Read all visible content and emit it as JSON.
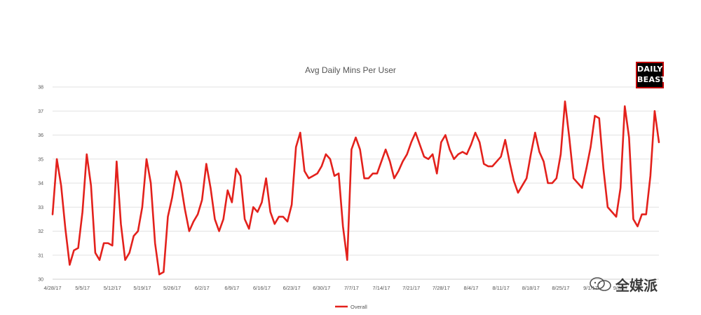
{
  "chart_data": {
    "type": "line",
    "title": "Avg Daily Mins Per User",
    "xlabel": "",
    "ylabel": "",
    "ylim": [
      30,
      38
    ],
    "yticks": [
      "30",
      "31",
      "32",
      "33",
      "34",
      "35",
      "36",
      "37",
      "38"
    ],
    "xticks": [
      "4/28/17",
      "5/5/17",
      "5/12/17",
      "5/19/17",
      "5/26/17",
      "6/2/17",
      "6/9/17",
      "6/16/17",
      "6/23/17",
      "6/30/17",
      "7/7/17",
      "7/14/17",
      "7/21/17",
      "7/28/17",
      "8/4/17",
      "8/11/17",
      "8/18/17",
      "8/25/17",
      "9/1/17",
      "9/8/17"
    ],
    "grid": true,
    "legend": "bottom",
    "series": [
      {
        "name": "Overall",
        "color": "#e3211c",
        "values": [
          32.7,
          35.0,
          33.9,
          32.1,
          30.6,
          31.2,
          31.3,
          32.8,
          35.2,
          33.9,
          31.1,
          30.8,
          31.5,
          31.5,
          31.4,
          34.9,
          32.3,
          30.8,
          31.1,
          31.8,
          32.0,
          33.0,
          35.0,
          34.0,
          31.5,
          30.2,
          30.3,
          32.6,
          33.4,
          34.5,
          34.0,
          32.9,
          32.0,
          32.4,
          32.7,
          33.3,
          34.8,
          33.8,
          32.5,
          32.0,
          32.5,
          33.7,
          33.2,
          34.6,
          34.3,
          32.5,
          32.1,
          33.0,
          32.8,
          33.2,
          34.2,
          32.8,
          32.3,
          32.6,
          32.6,
          32.4,
          33.1,
          35.5,
          36.1,
          34.5,
          34.2,
          34.3,
          34.4,
          34.7,
          35.2,
          35.0,
          34.3,
          34.4,
          32.2,
          30.8,
          35.4,
          35.9,
          35.4,
          34.2,
          34.2,
          34.4,
          34.4,
          34.9,
          35.4,
          34.9,
          34.2,
          34.5,
          34.9,
          35.2,
          35.7,
          36.1,
          35.6,
          35.1,
          35.0,
          35.2,
          34.4,
          35.7,
          36.0,
          35.4,
          35.0,
          35.2,
          35.3,
          35.2,
          35.6,
          36.1,
          35.7,
          34.8,
          34.7,
          34.7,
          34.9,
          35.1,
          35.8,
          34.9,
          34.1,
          33.6,
          33.9,
          34.2,
          35.2,
          36.1,
          35.3,
          34.9,
          34.0,
          34.0,
          34.2,
          35.2,
          37.4,
          35.9,
          34.2,
          34.0,
          33.8,
          34.6,
          35.5,
          36.8,
          36.7,
          34.6,
          33.0,
          32.8,
          32.6,
          33.8,
          37.2,
          35.9,
          32.5,
          32.2,
          32.7,
          32.7,
          34.3,
          37.0,
          35.7
        ]
      }
    ]
  },
  "branding": {
    "logo_line1": "DAILY",
    "logo_line2": "BEAST",
    "watermark_text": "全媒派"
  }
}
